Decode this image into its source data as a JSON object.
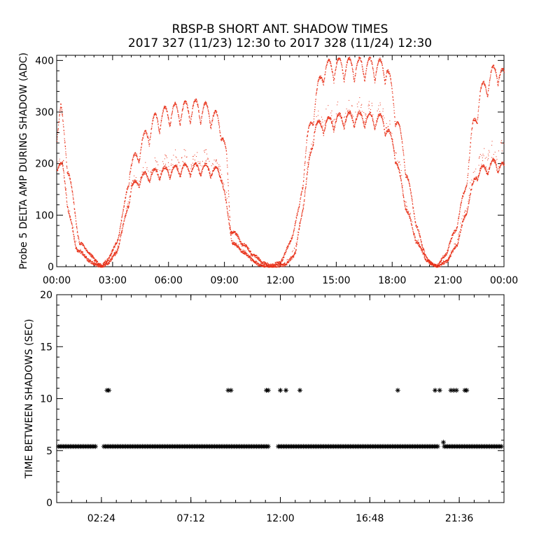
{
  "title": {
    "line1": "RBSP-B SHORT ANT. SHADOW TIMES",
    "line2": "2017 327 (11/23) 12:30 to 2017 328 (11/24) 12:30"
  },
  "colors": {
    "series1": "#e8321a",
    "series2": "#000000",
    "axis": "#000000"
  },
  "chart_data": [
    {
      "type": "scatter",
      "ylabel": "Probe 5 DELTA AMP DURING SHADOW (ADC)",
      "xlabel": "",
      "xlim": [
        0,
        24
      ],
      "ylim": [
        0,
        410
      ],
      "xticks": [
        "00:00",
        "03:00",
        "06:00",
        "09:00",
        "12:00",
        "15:00",
        "18:00",
        "21:00",
        "00:00"
      ],
      "yticks": [
        "0",
        "100",
        "200",
        "300",
        "400"
      ],
      "grid": false,
      "series": [
        {
          "color": "#e8321a",
          "upper_envelope": [
            [
              0.0,
              290
            ],
            [
              0.2,
              320
            ],
            [
              0.5,
              230
            ],
            [
              0.8,
              150
            ],
            [
              1.2,
              50
            ],
            [
              1.6,
              35
            ],
            [
              2.0,
              15
            ],
            [
              2.4,
              2
            ],
            [
              2.8,
              20
            ],
            [
              3.2,
              50
            ],
            [
              3.6,
              120
            ],
            [
              3.9,
              200
            ],
            [
              4.3,
              230
            ],
            [
              4.8,
              270
            ],
            [
              5.3,
              300
            ],
            [
              6.0,
              315
            ],
            [
              6.8,
              320
            ],
            [
              7.5,
              325
            ],
            [
              8.2,
              315
            ],
            [
              8.8,
              290
            ],
            [
              9.1,
              220
            ],
            [
              9.3,
              80
            ],
            [
              9.8,
              55
            ],
            [
              10.4,
              30
            ],
            [
              11.0,
              10
            ],
            [
              11.4,
              3
            ],
            [
              12.0,
              10
            ],
            [
              12.5,
              50
            ],
            [
              13.0,
              120
            ],
            [
              13.4,
              250
            ],
            [
              13.8,
              330
            ],
            [
              14.3,
              400
            ],
            [
              15.0,
              405
            ],
            [
              16.0,
              405
            ],
            [
              17.0,
              405
            ],
            [
              17.7,
              400
            ],
            [
              18.1,
              330
            ],
            [
              18.6,
              230
            ],
            [
              19.1,
              120
            ],
            [
              19.6,
              40
            ],
            [
              20.0,
              8
            ],
            [
              20.4,
              2
            ],
            [
              20.9,
              30
            ],
            [
              21.4,
              80
            ],
            [
              21.9,
              160
            ],
            [
              22.3,
              280
            ],
            [
              22.7,
              350
            ],
            [
              23.2,
              380
            ],
            [
              23.6,
              400
            ],
            [
              24.0,
              380
            ]
          ],
          "lower_envelope": [
            [
              0.0,
              210
            ],
            [
              0.3,
              200
            ],
            [
              0.6,
              120
            ],
            [
              1.0,
              40
            ],
            [
              1.4,
              25
            ],
            [
              1.8,
              10
            ],
            [
              2.4,
              0
            ],
            [
              2.8,
              10
            ],
            [
              3.2,
              30
            ],
            [
              3.6,
              90
            ],
            [
              4.0,
              160
            ],
            [
              4.5,
              180
            ],
            [
              5.2,
              190
            ],
            [
              6.0,
              195
            ],
            [
              7.0,
              200
            ],
            [
              8.0,
              200
            ],
            [
              8.8,
              190
            ],
            [
              9.1,
              120
            ],
            [
              9.4,
              50
            ],
            [
              10.0,
              30
            ],
            [
              10.8,
              5
            ],
            [
              11.5,
              0
            ],
            [
              12.3,
              5
            ],
            [
              12.8,
              30
            ],
            [
              13.3,
              150
            ],
            [
              13.8,
              280
            ],
            [
              14.5,
              290
            ],
            [
              15.5,
              300
            ],
            [
              16.5,
              300
            ],
            [
              17.5,
              295
            ],
            [
              18.1,
              240
            ],
            [
              18.6,
              140
            ],
            [
              19.2,
              60
            ],
            [
              19.8,
              15
            ],
            [
              20.4,
              0
            ],
            [
              21.0,
              15
            ],
            [
              21.5,
              50
            ],
            [
              22.0,
              120
            ],
            [
              22.5,
              190
            ],
            [
              23.0,
              200
            ],
            [
              23.5,
              210
            ],
            [
              24.0,
              200
            ]
          ]
        }
      ]
    },
    {
      "type": "scatter",
      "ylabel": "TIME BETWEEN SHADOWS (SEC)",
      "xlabel": "",
      "xlim": [
        0,
        24
      ],
      "ylim": [
        0,
        20
      ],
      "xticks": [
        "02:24",
        "07:12",
        "12:00",
        "16:48",
        "21:36"
      ],
      "yticks": [
        "0",
        "5",
        "10",
        "15",
        "20"
      ],
      "grid": false,
      "series": [
        {
          "marker": "*",
          "color": "#000000",
          "baseline_value": 5.4,
          "baseline_gaps": [
            [
              2.15,
              2.5
            ],
            [
              11.35,
              11.8
            ],
            [
              20.5,
              20.75
            ]
          ],
          "points": [
            [
              2.7,
              10.8
            ],
            [
              2.8,
              10.8
            ],
            [
              9.2,
              10.8
            ],
            [
              9.35,
              10.8
            ],
            [
              11.25,
              10.8
            ],
            [
              11.35,
              10.8
            ],
            [
              12.0,
              10.8
            ],
            [
              12.3,
              10.8
            ],
            [
              13.05,
              10.8
            ],
            [
              18.3,
              10.8
            ],
            [
              20.3,
              10.8
            ],
            [
              20.55,
              10.8
            ],
            [
              20.75,
              5.8
            ],
            [
              21.15,
              10.8
            ],
            [
              21.3,
              10.8
            ],
            [
              21.45,
              10.8
            ],
            [
              21.9,
              10.8
            ],
            [
              22.0,
              10.8
            ]
          ]
        }
      ]
    }
  ]
}
